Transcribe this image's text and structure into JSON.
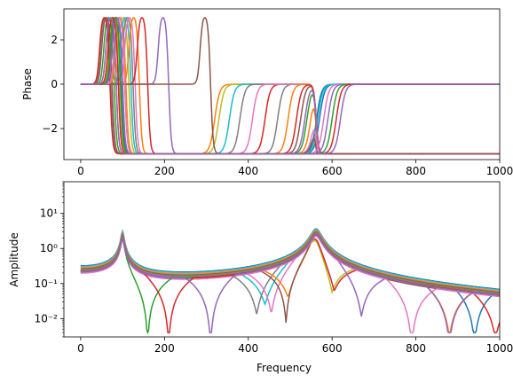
{
  "chart_data": [
    {
      "type": "line",
      "title": "",
      "xlabel": "",
      "ylabel": "Phase",
      "xlim": [
        -40,
        1000
      ],
      "ylim": [
        -3.4,
        3.4
      ],
      "x_ticks": [
        0,
        200,
        400,
        600,
        800,
        1000
      ],
      "x_tick_labels": [
        "0",
        "200",
        "400",
        "600",
        "800",
        "1000"
      ],
      "y_ticks": [
        -2,
        0,
        2
      ],
      "y_tick_labels": [
        "−2",
        "0",
        "2"
      ],
      "grid": false,
      "legend": "none"
    },
    {
      "type": "line",
      "title": "",
      "xlabel": "Frequency",
      "ylabel": "Amplitude",
      "xlim": [
        -40,
        1000
      ],
      "ylim": [
        0.003,
        80
      ],
      "yscale": "log",
      "x_ticks": [
        0,
        200,
        400,
        600,
        800,
        1000
      ],
      "x_tick_labels": [
        "0",
        "200",
        "400",
        "600",
        "800",
        "1000"
      ],
      "y_ticks": [
        0.01,
        0.1,
        1,
        10
      ],
      "y_tick_labels": [
        "10⁻²",
        "10⁻¹",
        "10⁰",
        "10¹"
      ],
      "grid": false,
      "legend": "none"
    }
  ],
  "colors": [
    "#1f77b4",
    "#ff7f0e",
    "#2ca02c",
    "#d62728",
    "#9467bd",
    "#8c564b",
    "#e377c2",
    "#7f7f7f",
    "#bcbd22",
    "#17becf"
  ],
  "series": [
    {
      "phase_drop": 100,
      "phase_rise": 570,
      "notch": 5000,
      "notch_depth": 1.0,
      "amp_end": 1.75,
      "color": "#1f77b4"
    },
    {
      "phase_drop": 97,
      "phase_rise": 563,
      "notch": 940,
      "notch_depth": 0.02,
      "amp_end": 1.6,
      "color": "#1f77b4"
    },
    {
      "phase_drop": 95,
      "phase_rise": 566,
      "notch": 3000,
      "notch_depth": 1.0,
      "amp_end": 1.55,
      "color": "#17becf"
    },
    {
      "phase_drop": 92,
      "phase_rise": 560,
      "notch": 2500,
      "notch_depth": 1.0,
      "amp_end": 1.35,
      "color": "#bcbd22"
    },
    {
      "phase_drop": 90,
      "phase_rise": 557,
      "notch": 2000,
      "notch_depth": 1.0,
      "amp_end": 1.25,
      "color": "#e377c2"
    },
    {
      "phase_drop": 85,
      "phase_rise": 549,
      "notch": 1700,
      "notch_depth": 1.0,
      "amp_end": 1.1,
      "color": "#ff7f0e"
    },
    {
      "phase_drop": 80,
      "phase_rise": 540,
      "notch": 1450,
      "notch_depth": 1.0,
      "amp_end": 0.95,
      "color": "#2ca02c"
    },
    {
      "phase_drop": 75,
      "phase_rise": 525,
      "notch": 1250,
      "notch_depth": 1.0,
      "amp_end": 0.85,
      "color": "#8c564b"
    },
    {
      "phase_drop": 72,
      "phase_rise": 470,
      "notch": 1100,
      "notch_depth": 1.0,
      "amp_end": 0.75,
      "color": "#7f7f7f"
    },
    {
      "phase_drop": 70,
      "phase_rise": 440,
      "notch": 990,
      "notch_depth": 0.05,
      "amp_end": 0.55,
      "color": "#d62728"
    },
    {
      "phase_drop": 108,
      "phase_rise": 320,
      "notch": 880,
      "notch_depth": 0.04,
      "amp_end": 0.55,
      "color": "#ff7f0e"
    },
    {
      "phase_drop": 115,
      "phase_rise": 330,
      "notch": 600,
      "notch_depth": 0.08,
      "amp_end": 0.5,
      "color": "#bcbd22"
    },
    {
      "phase_drop": 120,
      "phase_rise": 355,
      "notch": 440,
      "notch_depth": 0.1,
      "amp_end": 0.35,
      "color": "#17becf"
    },
    {
      "phase_drop": 125,
      "phase_rise": 380,
      "notch": 420,
      "notch_depth": 0.06,
      "amp_end": 0.3,
      "color": "#7f7f7f"
    },
    {
      "phase_drop": 130,
      "phase_rise": 410,
      "notch": 455,
      "notch_depth": 0.05,
      "amp_end": 0.25,
      "color": "#e377c2"
    },
    {
      "phase_drop": 140,
      "phase_rise": 495,
      "notch": 495,
      "notch_depth": 0.1,
      "amp_end": 0.2,
      "color": "#ff7f0e"
    },
    {
      "phase_drop": 160,
      "phase_rise": 515,
      "notch": 605,
      "notch_depth": 0.1,
      "amp_end": 0.45,
      "color": "#d62728"
    },
    {
      "phase_drop": 210,
      "phase_rise": 535,
      "notch": 670,
      "notch_depth": 0.05,
      "amp_end": 0.3,
      "color": "#9467bd"
    },
    {
      "phase_drop": 310,
      "phase_rise": 560,
      "notch": 490,
      "notch_depth": 0.02,
      "amp_end": 0.12,
      "color": "#8c564b"
    },
    {
      "phase_drop": 105,
      "phase_rise": 580,
      "notch": 790,
      "notch_depth": 0.008,
      "amp_end": 0.09,
      "color": "#e377c2"
    },
    {
      "phase_drop": 100,
      "phase_rise": 590,
      "notch": 880,
      "notch_depth": 0.02,
      "amp_end": 0.5,
      "color": "#9467bd"
    },
    {
      "phase_drop": 95,
      "phase_rise": 600,
      "notch": 160,
      "notch_depth": 0.008,
      "amp_end": 0.4,
      "color": "#2ca02c"
    },
    {
      "phase_drop": 90,
      "phase_rise": 610,
      "notch": 210,
      "notch_depth": 0.007,
      "amp_end": 0.35,
      "color": "#d62728"
    },
    {
      "phase_drop": 85,
      "phase_rise": 620,
      "notch": 310,
      "notch_depth": 0.005,
      "amp_end": 0.3,
      "color": "#9467bd"
    }
  ]
}
